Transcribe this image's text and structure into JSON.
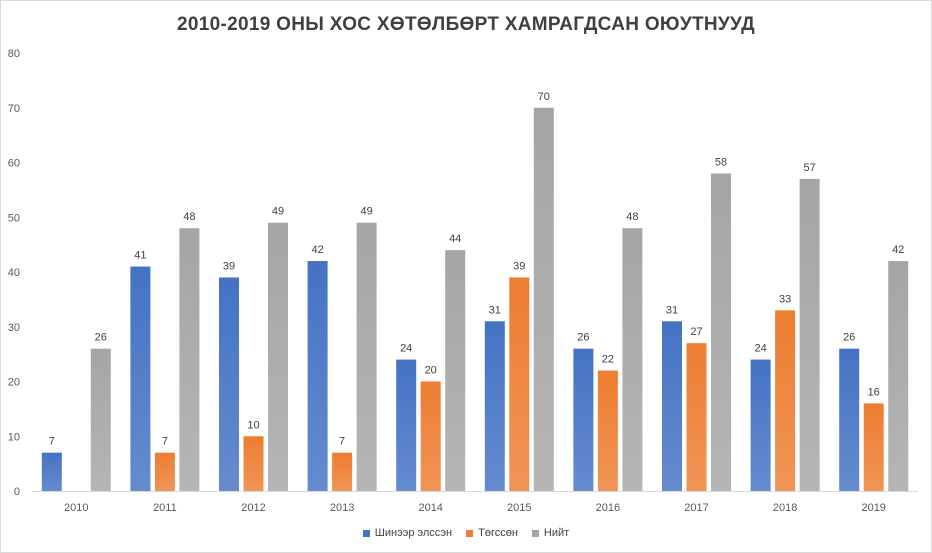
{
  "chart_data": {
    "type": "bar",
    "title": "2010-2019 ОНЫ ХОС ХӨТӨЛБӨРТ ХАМРАГДСАН ОЮУТНУУД",
    "categories": [
      "2010",
      "2011",
      "2012",
      "2013",
      "2014",
      "2015",
      "2016",
      "2017",
      "2018",
      "2019"
    ],
    "series": [
      {
        "name": "Шинээр элссэн",
        "color": "#4472c4",
        "values": [
          7,
          41,
          39,
          42,
          24,
          31,
          26,
          31,
          24,
          26
        ]
      },
      {
        "name": "Төгссөн",
        "color": "#ed7d31",
        "values": [
          null,
          7,
          10,
          7,
          20,
          39,
          22,
          27,
          33,
          16
        ]
      },
      {
        "name": "Нийт",
        "color": "#a5a5a5",
        "values": [
          26,
          48,
          49,
          49,
          44,
          70,
          48,
          58,
          57,
          42
        ]
      }
    ],
    "y_ticks": [
      "0",
      "10",
      "20",
      "30",
      "40",
      "50",
      "60",
      "70",
      "80"
    ],
    "ylim": [
      0,
      80
    ],
    "grid": false,
    "legend": "bottom"
  }
}
